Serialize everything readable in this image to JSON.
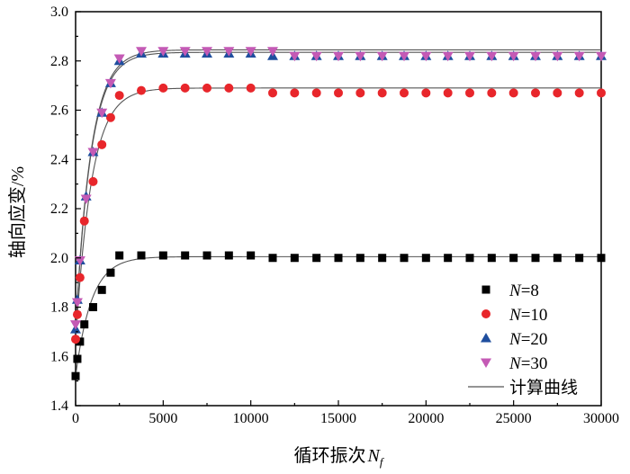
{
  "chart_data": {
    "type": "scatter",
    "title": "",
    "xlabel": "循环振次",
    "xlabel_symbol": "N",
    "xlabel_subscript": "f",
    "ylabel": "轴向应变/%",
    "xlim": [
      0,
      30000
    ],
    "ylim": [
      1.4,
      3.0
    ],
    "xticks": [
      0,
      5000,
      10000,
      15000,
      20000,
      25000,
      30000
    ],
    "yticks": [
      1.4,
      1.6,
      1.8,
      2.0,
      2.2,
      2.4,
      2.6,
      2.8,
      3.0
    ],
    "grid": false,
    "legend_position": "bottom-right",
    "series": [
      {
        "name": "N=8",
        "label_var": "N",
        "label_val": "=8",
        "marker": "square",
        "color": "#000000",
        "x": [
          0,
          100,
          250,
          500,
          1000,
          1500,
          2000,
          2500,
          3750,
          5000,
          6250,
          7500,
          8750,
          10000,
          11250,
          12500,
          13750,
          15000,
          16250,
          17500,
          18750,
          20000,
          21250,
          22500,
          23750,
          25000,
          26250,
          27500,
          28750,
          30000
        ],
        "y": [
          1.52,
          1.59,
          1.66,
          1.73,
          1.8,
          1.87,
          1.94,
          2.01,
          2.01,
          2.01,
          2.01,
          2.01,
          2.01,
          2.01,
          2.0,
          2.0,
          2.0,
          2.0,
          2.0,
          2.0,
          2.0,
          2.0,
          2.0,
          2.0,
          2.0,
          2.0,
          2.0,
          2.0,
          2.0,
          2.0
        ]
      },
      {
        "name": "N=10",
        "label_var": "N",
        "label_val": "=10",
        "marker": "circle",
        "color": "#e8262b",
        "x": [
          0,
          100,
          250,
          500,
          1000,
          1500,
          2000,
          2500,
          3750,
          5000,
          6250,
          7500,
          8750,
          10000,
          11250,
          12500,
          13750,
          15000,
          16250,
          17500,
          18750,
          20000,
          21250,
          22500,
          23750,
          25000,
          26250,
          27500,
          28750,
          30000
        ],
        "y": [
          1.67,
          1.77,
          1.92,
          2.15,
          2.31,
          2.46,
          2.57,
          2.66,
          2.68,
          2.69,
          2.69,
          2.69,
          2.69,
          2.69,
          2.67,
          2.67,
          2.67,
          2.67,
          2.67,
          2.67,
          2.67,
          2.67,
          2.67,
          2.67,
          2.67,
          2.67,
          2.67,
          2.67,
          2.67,
          2.67
        ]
      },
      {
        "name": "N=20",
        "label_var": "N",
        "label_val": "=20",
        "marker": "triangle-up",
        "color": "#1f4e9e",
        "x": [
          0,
          100,
          250,
          600,
          1000,
          1500,
          2000,
          2500,
          3750,
          5000,
          6250,
          7500,
          8750,
          10000,
          11250,
          12500,
          13750,
          15000,
          16250,
          17500,
          18750,
          20000,
          21250,
          22500,
          23750,
          25000,
          26250,
          27500,
          28750,
          30000
        ],
        "y": [
          1.71,
          1.83,
          1.99,
          2.25,
          2.43,
          2.59,
          2.71,
          2.8,
          2.83,
          2.83,
          2.83,
          2.83,
          2.83,
          2.83,
          2.82,
          2.82,
          2.82,
          2.82,
          2.82,
          2.82,
          2.82,
          2.82,
          2.82,
          2.82,
          2.82,
          2.82,
          2.82,
          2.82,
          2.82,
          2.82
        ]
      },
      {
        "name": "N=30",
        "label_var": "N",
        "label_val": "=30",
        "marker": "triangle-down",
        "color": "#c45ab5",
        "x": [
          0,
          100,
          250,
          600,
          1000,
          1500,
          2000,
          2500,
          3750,
          5000,
          6250,
          7500,
          8750,
          10000,
          11250,
          12500,
          13750,
          15000,
          16250,
          17500,
          18750,
          20000,
          21250,
          22500,
          23750,
          25000,
          26250,
          27500,
          28750,
          30000
        ],
        "y": [
          1.73,
          1.82,
          1.99,
          2.24,
          2.43,
          2.59,
          2.71,
          2.81,
          2.84,
          2.84,
          2.84,
          2.84,
          2.84,
          2.84,
          2.84,
          2.82,
          2.82,
          2.82,
          2.82,
          2.82,
          2.82,
          2.82,
          2.82,
          2.82,
          2.82,
          2.82,
          2.82,
          2.82,
          2.82,
          2.82
        ]
      }
    ],
    "fit_curves": {
      "name": "计算曲线",
      "color": "#555555",
      "curves": [
        {
          "y0": 1.52,
          "ymax": 2.005,
          "k": 0.0011
        },
        {
          "y0": 1.66,
          "ymax": 2.69,
          "k": 0.0011
        },
        {
          "y0": 1.7,
          "ymax": 2.835,
          "k": 0.00115
        },
        {
          "y0": 1.71,
          "ymax": 2.845,
          "k": 0.00115
        }
      ]
    }
  }
}
